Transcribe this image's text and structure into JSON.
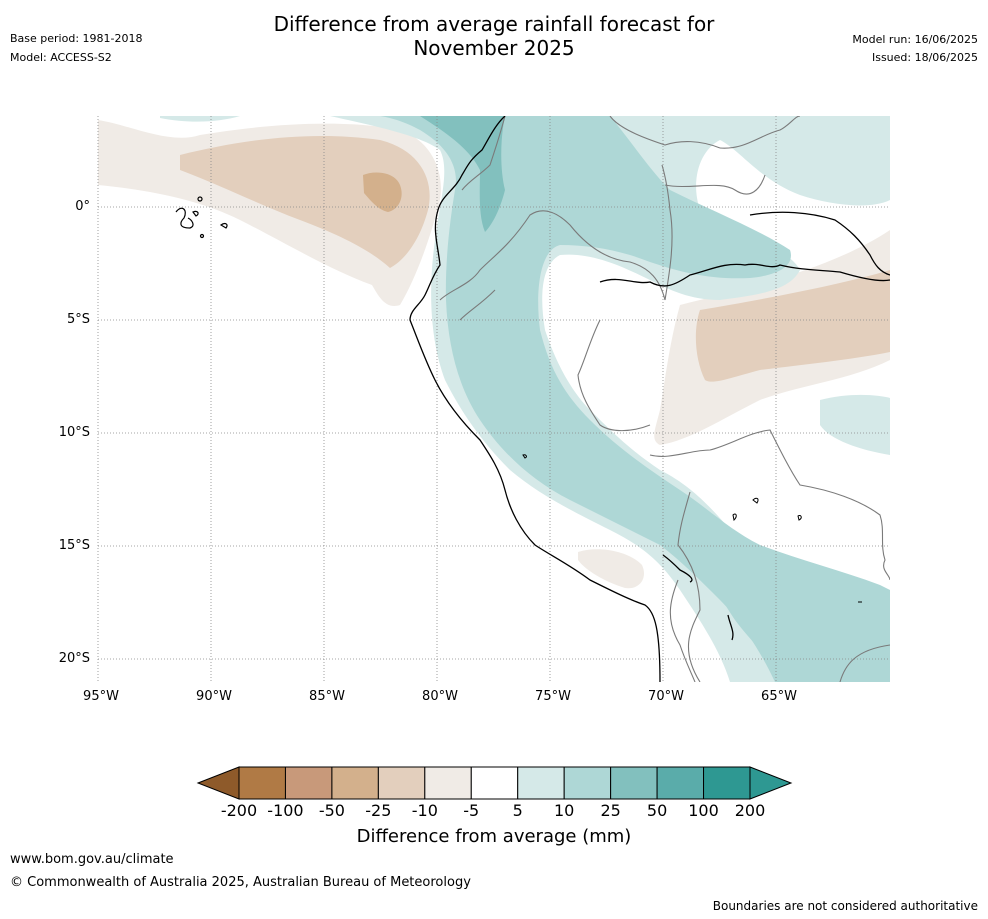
{
  "header": {
    "base_period": "Base period: 1981-2018",
    "model": "Model: ACCESS-S2",
    "title_line1": "Difference from average rainfall forecast for",
    "title_line2": "November 2025",
    "model_run": "Model run: 16/06/2025",
    "issued": "Issued: 18/06/2025"
  },
  "map": {
    "lat_labels": [
      "0°",
      "5°S",
      "10°S",
      "15°S",
      "20°S"
    ],
    "lon_labels": [
      "95°W",
      "90°W",
      "85°W",
      "80°W",
      "75°W",
      "70°W",
      "65°W"
    ],
    "palette": {
      "-200": "#8e5a2a",
      "-100": "#b07a45",
      "-50": "#c8997a",
      "-25": "#d3b08c",
      "-10": "#e3cfbd",
      "-5": "#f0ebe6",
      "5": "#ffffff",
      "10": "#d5e9e8",
      "25": "#aed7d6",
      "50": "#82c0be",
      "100": "#5aacaa",
      "200": "#2e9892"
    }
  },
  "colorbar": {
    "ticks": [
      "-200",
      "-100",
      "-50",
      "-25",
      "-10",
      "-5",
      "5",
      "10",
      "25",
      "50",
      "100",
      "200"
    ],
    "label": "Difference from average (mm)"
  },
  "footer": {
    "url": "www.bom.gov.au/climate",
    "copyright": "© Commonwealth of Australia 2025, Australian Bureau of Meteorology",
    "disclaimer": "Boundaries are not considered authoritative"
  }
}
